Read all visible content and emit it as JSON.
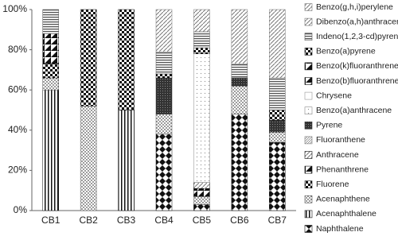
{
  "chart_data": {
    "type": "stacked-bar",
    "categories": [
      "CB1",
      "CB2",
      "CB3",
      "CB4",
      "CB5",
      "CB6",
      "CB7"
    ],
    "ylim": [
      0,
      100
    ],
    "yticks": [
      {
        "value": 0,
        "label": "0%"
      },
      {
        "value": 20,
        "label": "20%"
      },
      {
        "value": 40,
        "label": "40%"
      },
      {
        "value": 60,
        "label": "60%"
      },
      {
        "value": 80,
        "label": "80%"
      },
      {
        "value": 100,
        "label": "100%"
      }
    ],
    "legend": "right",
    "series": [
      {
        "name": "Naphthalene",
        "color": "#111",
        "pattern": "diamonds",
        "values": [
          0,
          0,
          0,
          38,
          3,
          48,
          34
        ]
      },
      {
        "name": "Acenaphthalene",
        "color": "#111",
        "pattern": "vertical",
        "values": [
          60,
          0,
          50,
          0,
          0,
          0,
          0
        ]
      },
      {
        "name": "Acenaphthene",
        "color": "#555",
        "pattern": "dots",
        "values": [
          6,
          52,
          0,
          10,
          4,
          14,
          5
        ]
      },
      {
        "name": "Fluorene",
        "color": "#111",
        "pattern": "checker",
        "values": [
          7,
          48,
          50,
          0,
          0,
          0,
          0
        ]
      },
      {
        "name": "Phenanthrene",
        "color": "#111",
        "pattern": "half",
        "values": [
          15,
          0,
          0,
          0,
          4,
          0,
          0
        ]
      },
      {
        "name": "Anthracene",
        "color": "#111",
        "pattern": "diagonal",
        "values": [
          0,
          0,
          0,
          0,
          3,
          0,
          0
        ]
      },
      {
        "name": "Fluoranthene",
        "color": "#777",
        "pattern": "fine",
        "values": [
          0,
          0,
          0,
          0,
          0,
          0,
          0
        ]
      },
      {
        "name": "Pyrene",
        "color": "#333",
        "pattern": "dark",
        "values": [
          0,
          0,
          0,
          18,
          0,
          4,
          6
        ]
      },
      {
        "name": "Benzo(a)anthracene",
        "color": "#888",
        "pattern": "sparse",
        "values": [
          0,
          0,
          0,
          0,
          64,
          0,
          0
        ]
      },
      {
        "name": "Chrysene",
        "color": "#999",
        "pattern": "none",
        "values": [
          0,
          0,
          0,
          0,
          0,
          0,
          0
        ]
      },
      {
        "name": "Benzo(b)fluoranthrene",
        "color": "#111",
        "pattern": "half",
        "values": [
          0,
          0,
          0,
          0,
          0,
          0,
          0
        ]
      },
      {
        "name": "Benzo(k)fluoranthrene",
        "color": "#111",
        "pattern": "half",
        "values": [
          0,
          0,
          0,
          0,
          0,
          0,
          0
        ]
      },
      {
        "name": "Benzo(a)pyrene",
        "color": "#111",
        "pattern": "checker",
        "values": [
          0,
          0,
          0,
          2,
          3,
          0,
          5
        ]
      },
      {
        "name": "Indeno(1,2,3-cd)pyrene",
        "color": "#555",
        "pattern": "horizontal",
        "values": [
          12,
          0,
          0,
          11,
          8,
          7,
          16
        ]
      },
      {
        "name": "Dibenzo(a,h)anthracene",
        "color": "#777",
        "pattern": "diagonal",
        "values": [
          0,
          0,
          0,
          0,
          0,
          0,
          0
        ]
      },
      {
        "name": "Benzo(g,h,i)perylene",
        "color": "#777",
        "pattern": "diagonal",
        "values": [
          0,
          0,
          0,
          21,
          11,
          27,
          34
        ]
      }
    ]
  }
}
